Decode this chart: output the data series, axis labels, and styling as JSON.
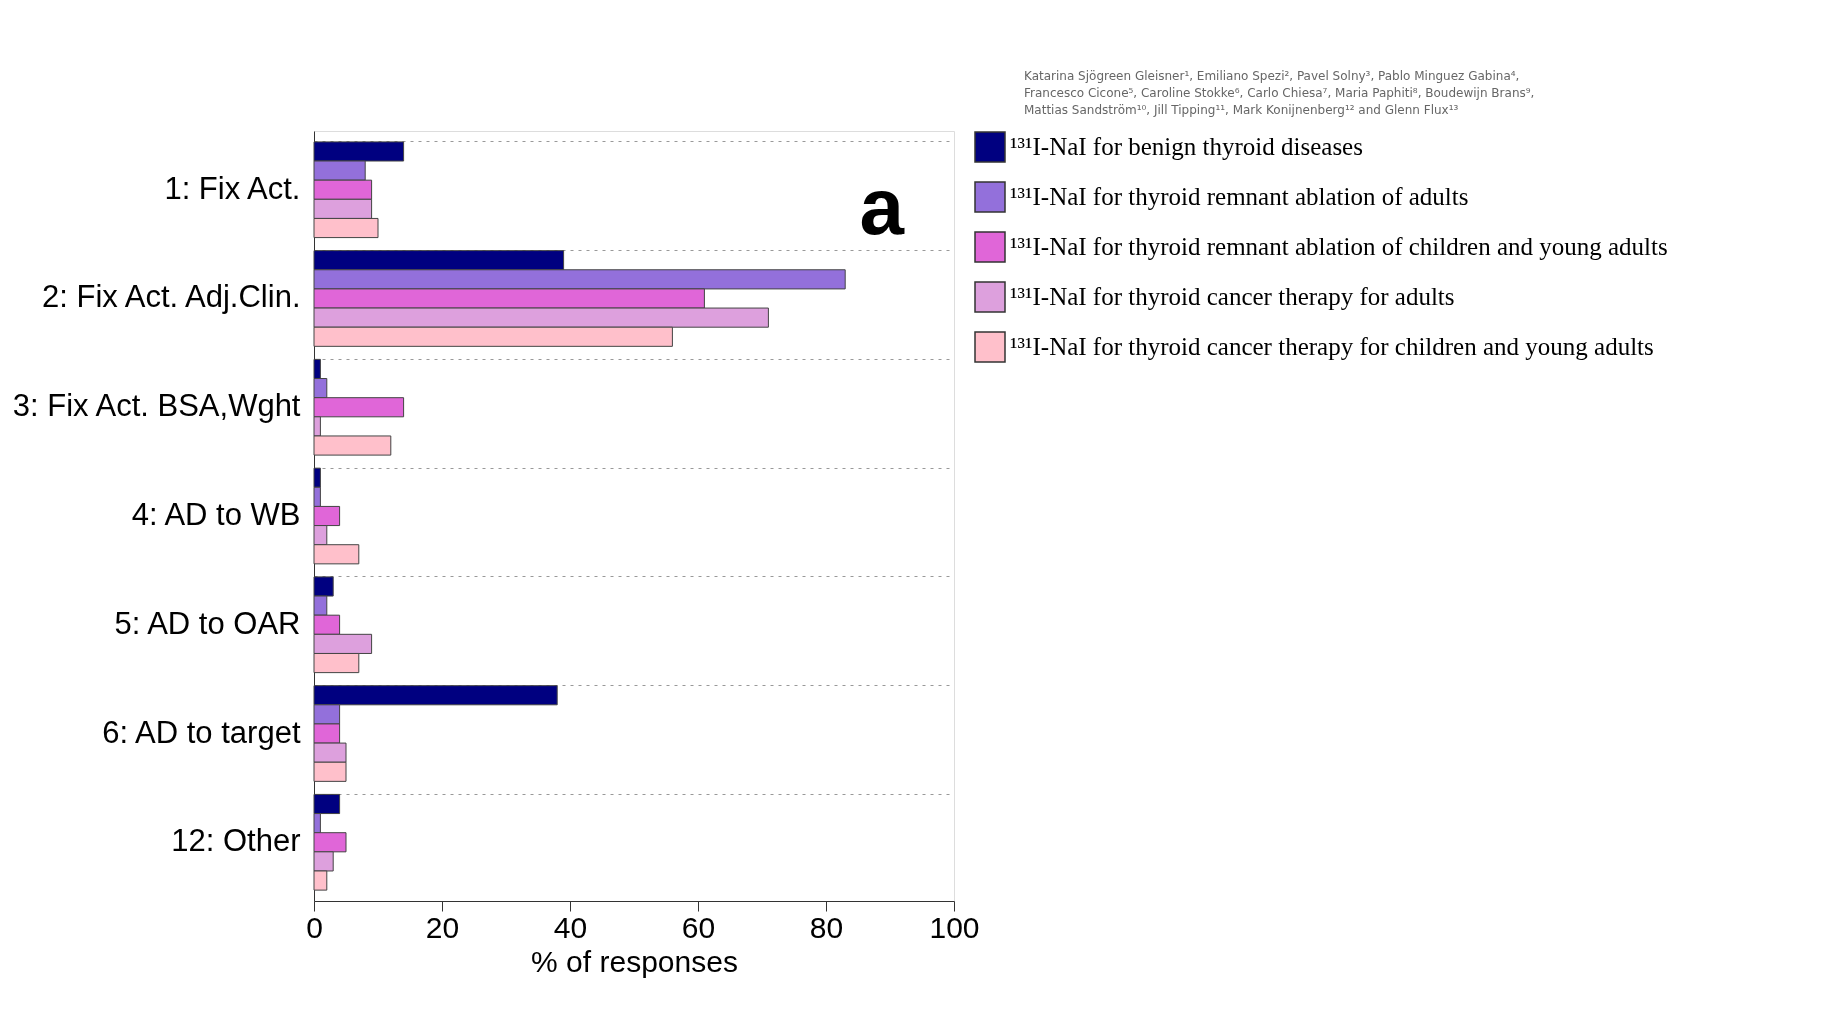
{
  "chart_data": {
    "type": "bar",
    "orientation": "horizontal",
    "xlabel": "% of responses",
    "categories": [
      "1: Fix Act.",
      "2: Fix Act. Adj.Clin.",
      "3: Fix Act. BSA,Wght",
      "4: AD to WB",
      "5: AD to OAR",
      "6: AD to target",
      "12: Other"
    ],
    "series": [
      {
        "name": "¹³¹I-NaI for benign thyroid diseases",
        "color": "#000080",
        "values": [
          14,
          39,
          1,
          1,
          3,
          38,
          4
        ]
      },
      {
        "name": "¹³¹I-NaI for thyroid remnant ablation of adults",
        "color": "#9370db",
        "values": [
          8,
          83,
          2,
          1,
          2,
          4,
          1
        ]
      },
      {
        "name": "¹³¹I-NaI for thyroid remnant ablation of children and young adults",
        "color": "#e066d8",
        "values": [
          9,
          61,
          14,
          4,
          4,
          4,
          5
        ]
      },
      {
        "name": "¹³¹I-NaI for thyroid cancer therapy for adults",
        "color": "#dda0dd",
        "values": [
          9,
          71,
          1,
          2,
          9,
          5,
          3
        ]
      },
      {
        "name": "¹³¹I-NaI for thyroid cancer therapy for children and young adults",
        "color": "#ffc0cb",
        "values": [
          10,
          56,
          12,
          7,
          7,
          5,
          2
        ]
      }
    ],
    "xlim": [
      0,
      100
    ],
    "xticks": [
      0,
      20,
      40,
      60,
      80,
      100
    ],
    "grid": "y",
    "legend": "right",
    "annotations": [
      "a",
      "Katarina Sjögreen Gleisner¹, Emiliano Spezi², Pavel Solny³, Pablo Minguez Gabina⁴, Francesco Cicone⁵, Caroline Stokke⁶, Carlo Chiesa⁷, Maria Paphiti⁸, Boudewijn Brans⁹, Mattias Sandström¹⁰, Jill Tipping¹¹, Mark Konijnenberg¹² and Glenn Flux¹³"
    ]
  }
}
